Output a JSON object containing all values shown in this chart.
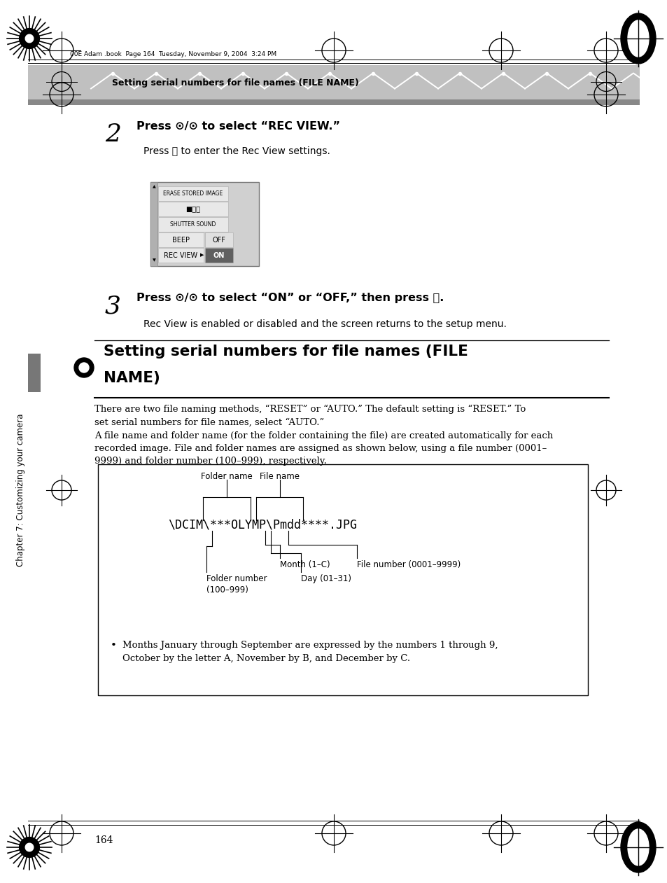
{
  "page_width": 9.54,
  "page_height": 12.61,
  "bg_color": "#ffffff",
  "header_text": "Setting serial numbers for file names (FILE NAME)",
  "top_meta": "00E Adam .book  Page 164  Tuesday, November 9, 2004  3:24 PM",
  "chapter_side_text": "Chapter 7: Customizing your camera",
  "page_number": "164",
  "folder_name_label": "Folder name",
  "file_name_label": "File name",
  "month_label": "Month (1–C)",
  "file_number_label": "File number (0001–9999)",
  "day_label": "Day (01–31)",
  "bullet_text_line1": "Months January through September are expressed by the numbers 1 through 9,",
  "bullet_text_line2": "October by the letter A, November by B, and December by C."
}
